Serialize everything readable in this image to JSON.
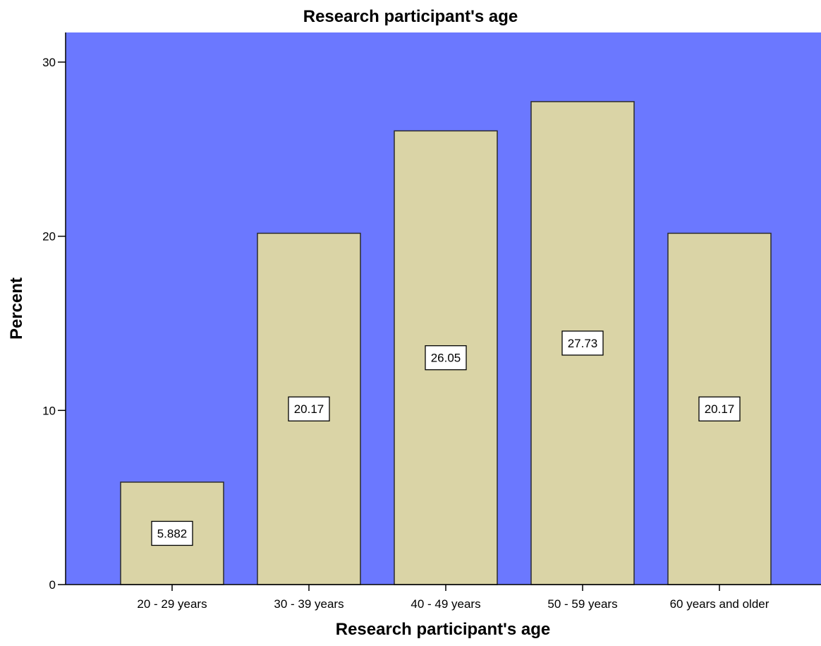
{
  "chart_data": {
    "type": "bar",
    "title": "Research participant's age",
    "xlabel": "Research participant's age",
    "ylabel": "Percent",
    "categories": [
      "20 - 29 years",
      "30 - 39 years",
      "40 - 49 years",
      "50 - 59 years",
      "60 years and older"
    ],
    "values": [
      5.882,
      20.17,
      26.05,
      27.73,
      20.17
    ],
    "data_labels": [
      "5.882",
      "20.17",
      "26.05",
      "27.73",
      "20.17"
    ],
    "ylim": [
      0,
      31.7
    ],
    "yticks": [
      0,
      10,
      20,
      30
    ],
    "ytick_labels": [
      "0",
      "10",
      "20",
      "30"
    ],
    "grid": false,
    "legend": "none",
    "colors": {
      "plot_background": "#6b78ff",
      "bar_fill": "#dad4a6",
      "bar_stroke": "#2b2b2b",
      "label_box_fill": "#ffffff",
      "label_box_stroke": "#000000"
    }
  }
}
